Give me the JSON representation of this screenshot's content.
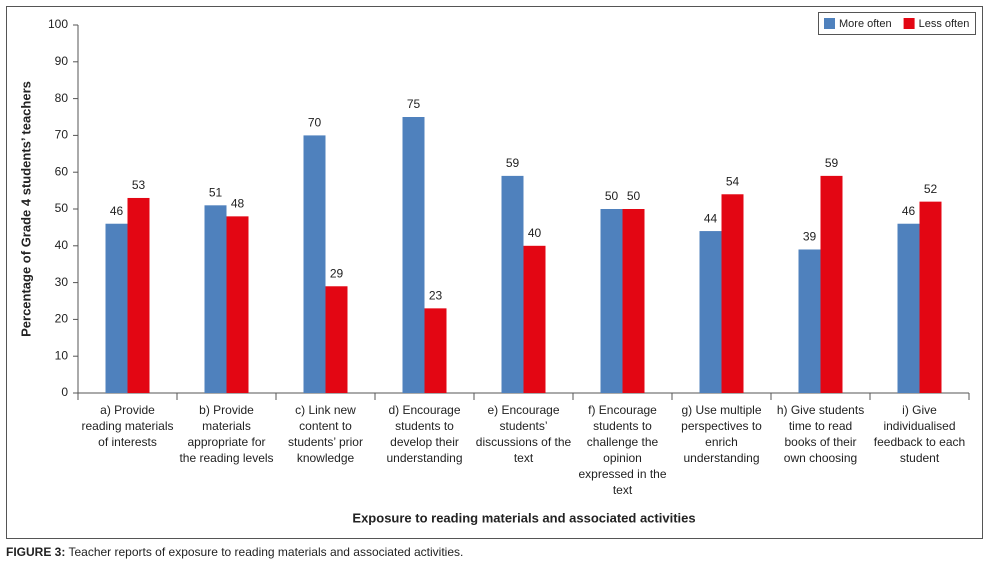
{
  "chart_data": {
    "type": "bar",
    "y_label": "Percentage of Grade 4 students’ teachers",
    "x_label": "Exposure to reading materials and associated activities",
    "categories": [
      "a) Provide reading materials of interests",
      "b) Provide materials appropriate for the reading levels",
      "c) Link new content to students’ prior knowledge",
      "d) Encourage students to develop their understanding",
      "e) Encourage students’ discussions of the text",
      "f) Encourage students to challenge the opinion expressed in the text",
      "g) Use multiple perspectives to enrich understanding",
      "h) Give students time to read books of their own choosing",
      "i) Give individualised feedback to each student"
    ],
    "series": [
      {
        "name": "More often",
        "color": "#4f81bd",
        "values": [
          46,
          51,
          70,
          75,
          59,
          50,
          44,
          39,
          46
        ]
      },
      {
        "name": "Less often",
        "color": "#e30613",
        "values": [
          53,
          48,
          29,
          23,
          40,
          50,
          54,
          59,
          52
        ]
      }
    ],
    "ylim": [
      0,
      100
    ],
    "yticks": [
      0,
      10,
      20,
      30,
      40,
      50,
      60,
      70,
      80,
      90,
      100
    ],
    "grid": false,
    "legend": "upper right"
  },
  "figure_label": "FIGURE 3:",
  "caption": "Teacher reports of exposure to reading materials and associated activities."
}
